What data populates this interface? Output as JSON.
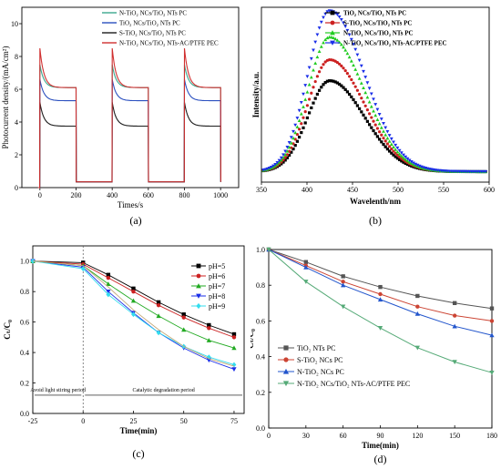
{
  "chart_data": [
    {
      "panel": "(a)",
      "type": "line",
      "xlabel": "Times/s",
      "ylabel": "Photocurrent density/(mA/cm²)",
      "xlim": [
        -100,
        1100
      ],
      "ylim": [
        0,
        11
      ],
      "xticks": [
        0,
        200,
        400,
        600,
        800,
        1000
      ],
      "yticks": [
        0,
        2,
        4,
        6,
        8,
        10
      ],
      "on_periods": [
        [
          0,
          200
        ],
        [
          400,
          600
        ],
        [
          800,
          1000
        ]
      ],
      "dark_level": 0.35,
      "series": [
        {
          "name": "N-TiO₂ NCs/TiO₂ NTs PC",
          "color": "#3aa88f",
          "peak": 7.5,
          "steady": 6.1
        },
        {
          "name": "TiO₂ NCs/TiO₂ NTs PC",
          "color": "#2a4fbf",
          "peak": 6.6,
          "steady": 5.3
        },
        {
          "name": "S-TiO₂ NCs/TiO₂ NTs PC",
          "color": "#1d1d1d",
          "peak": 5.2,
          "steady": 3.75
        },
        {
          "name": "N-TiO₂ NCs/TiO₂ NTs-AC/PTFE PEC",
          "color": "#d03030",
          "peak": 8.5,
          "steady": 6.1
        }
      ]
    },
    {
      "panel": "(b)",
      "type": "line",
      "xlabel": "Wavelenth/nm",
      "ylabel": "Intensity/a.u.",
      "xlim": [
        350,
        600
      ],
      "xticks": [
        350,
        400,
        450,
        500,
        550,
        600
      ],
      "peak_x": 425,
      "baseline": 0.06,
      "series": [
        {
          "name": "TiO₂ NCs/TiO₂ NTs PC",
          "color": "#000000",
          "marker": "square",
          "peak": 0.52
        },
        {
          "name": "S-TiO₂ NCs/TiO₂ NTs PC",
          "color": "#cc2020",
          "marker": "circle",
          "peak": 0.64
        },
        {
          "name": "N-TiO₂ NCs/TiO₂ NTs PC",
          "color": "#22cc22",
          "marker": "triangle",
          "peak": 0.77
        },
        {
          "name": "N-TiO₂ NCs/TiO₂ NTs-AC/PTFE PEC",
          "color": "#1a2ee8",
          "marker": "triangle-down",
          "peak": 0.92
        }
      ]
    },
    {
      "panel": "(c)",
      "type": "line",
      "xlabel": "Time(min)",
      "ylabel": "Cₜ/C₀",
      "xlim": [
        -25,
        80
      ],
      "ylim": [
        0,
        1.1
      ],
      "xticks": [
        -25,
        0,
        25,
        50,
        75
      ],
      "yticks": [
        0.0,
        0.2,
        0.4,
        0.6,
        0.8,
        1.0
      ],
      "annotations": {
        "dark_label": "Avoid light stiring period",
        "light_label": "Catalytic degradation period"
      },
      "x": [
        -25,
        0,
        12.5,
        25,
        37.5,
        50,
        62.5,
        75
      ],
      "series": [
        {
          "name": "pH=5",
          "color": "#000000",
          "marker": "square",
          "values": [
            1.0,
            0.99,
            0.91,
            0.82,
            0.73,
            0.65,
            0.58,
            0.52
          ]
        },
        {
          "name": "pH=6",
          "color": "#cc2222",
          "marker": "circle",
          "values": [
            1.0,
            0.98,
            0.89,
            0.8,
            0.71,
            0.63,
            0.56,
            0.5
          ]
        },
        {
          "name": "pH=7",
          "color": "#22aa22",
          "marker": "triangle",
          "values": [
            1.0,
            0.97,
            0.85,
            0.74,
            0.64,
            0.55,
            0.48,
            0.43
          ]
        },
        {
          "name": "pH=8",
          "color": "#1a2ee8",
          "marker": "triangle-down",
          "values": [
            1.0,
            0.96,
            0.8,
            0.66,
            0.53,
            0.43,
            0.35,
            0.29
          ]
        },
        {
          "name": "pH=9",
          "color": "#33ddee",
          "marker": "diamond",
          "values": [
            1.0,
            0.95,
            0.78,
            0.65,
            0.53,
            0.44,
            0.37,
            0.32
          ]
        },
        {
          "name": "",
          "color": "#c4a877",
          "marker": "none",
          "values": [
            1.0,
            0.97,
            0.83,
            0.68,
            0.55,
            0.44,
            0.36,
            0.31
          ]
        }
      ]
    },
    {
      "panel": "(d)",
      "type": "line",
      "xlabel": "Time(min)",
      "ylabel": "Cₜ/C₀",
      "xlim": [
        0,
        180
      ],
      "ylim": [
        0,
        1.0
      ],
      "xticks": [
        0,
        30,
        60,
        90,
        120,
        150,
        180
      ],
      "yticks": [
        0.0,
        0.2,
        0.4,
        0.6,
        0.8,
        1.0
      ],
      "x": [
        0,
        30,
        60,
        90,
        120,
        150,
        180
      ],
      "series": [
        {
          "name": "TiO₂ NTs PC",
          "color": "#555555",
          "marker": "square",
          "values": [
            1.0,
            0.93,
            0.85,
            0.79,
            0.74,
            0.7,
            0.67
          ]
        },
        {
          "name": "S-TiO₂ NCs PC",
          "color": "#cc4433",
          "marker": "circle",
          "values": [
            1.0,
            0.91,
            0.82,
            0.75,
            0.68,
            0.63,
            0.6
          ]
        },
        {
          "name": "N-TiO₂ NCs PC",
          "color": "#2255cc",
          "marker": "triangle",
          "values": [
            1.0,
            0.9,
            0.8,
            0.72,
            0.64,
            0.57,
            0.52
          ]
        },
        {
          "name": "N-TiO₂ NCs/TiO₂ NTs-AC/PTFE PEC",
          "color": "#55aa77",
          "marker": "triangle-down",
          "values": [
            1.0,
            0.82,
            0.68,
            0.56,
            0.45,
            0.37,
            0.31
          ]
        }
      ]
    }
  ]
}
